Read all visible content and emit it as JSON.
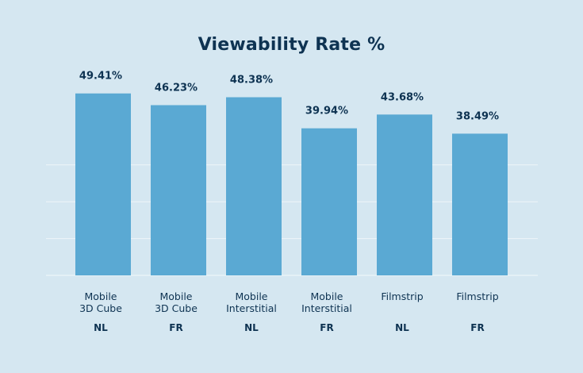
{
  "chart_data": {
    "type": "bar",
    "title": "Viewability Rate %",
    "categories": [
      {
        "lines": [
          "Mobile",
          "3D Cube"
        ],
        "group": "NL"
      },
      {
        "lines": [
          "Mobile",
          "3D Cube"
        ],
        "group": "FR"
      },
      {
        "lines": [
          "Mobile",
          "Interstitial"
        ],
        "group": "NL"
      },
      {
        "lines": [
          "Mobile",
          "Interstitial"
        ],
        "group": "FR"
      },
      {
        "lines": [
          "Filmstrip"
        ],
        "group": "NL"
      },
      {
        "lines": [
          "Filmstrip"
        ],
        "group": "FR"
      }
    ],
    "values": [
      49.41,
      46.23,
      48.38,
      39.94,
      43.68,
      38.49
    ],
    "value_labels": [
      "49.41%",
      "46.23%",
      "48.38%",
      "39.94%",
      "43.68%",
      "38.49%"
    ],
    "xlabel": "",
    "ylabel": "",
    "ylim": [
      0,
      50
    ],
    "grid": true,
    "colors": {
      "bar": "#5aa9d3",
      "grid": "#eef5f9",
      "text": "#0e3352",
      "background": "#d5e7f1"
    }
  }
}
